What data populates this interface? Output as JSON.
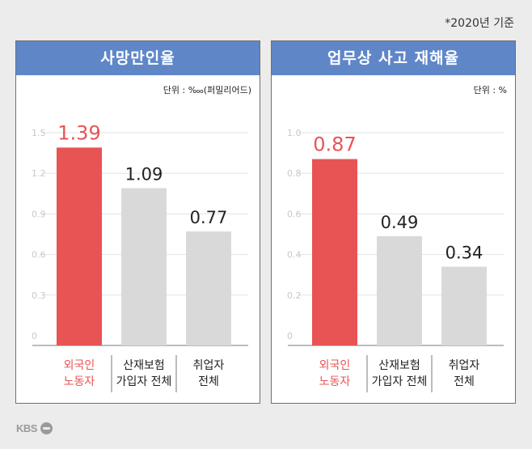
{
  "note": "*2020년 기준",
  "logo": "KBS",
  "colors": {
    "highlight": "#e85454",
    "neutral": "#d9d9d9",
    "header": "#5f87c8",
    "tick": "#c8c8c8",
    "grid": "#e3e3e3"
  },
  "chart_data": [
    {
      "type": "bar",
      "title": "사망만인율",
      "unit": "단위 : ‱(퍼밀리어드)",
      "categories": [
        [
          "외국인",
          "노동자"
        ],
        [
          "산재보험",
          "가입자 전체"
        ],
        [
          "취업자",
          "전체"
        ]
      ],
      "values": [
        1.39,
        1.09,
        0.77
      ],
      "value_labels": [
        "1.39",
        "1.09",
        "0.77"
      ],
      "yticks": [
        "0",
        "0.3",
        "0.6",
        "0.9",
        "1.2",
        "1.5"
      ],
      "ylim": [
        0,
        1.5
      ],
      "highlight_index": 0
    },
    {
      "type": "bar",
      "title": "업무상 사고 재해율",
      "unit": "단위 : %",
      "categories": [
        [
          "외국인",
          "노동자"
        ],
        [
          "산재보험",
          "가입자 전체"
        ],
        [
          "취업자",
          "전체"
        ]
      ],
      "values": [
        0.87,
        0.49,
        0.34
      ],
      "value_labels": [
        "0.87",
        "0.49",
        "0.34"
      ],
      "yticks": [
        "0",
        "0.2",
        "0.4",
        "0.6",
        "0.8",
        "1.0"
      ],
      "ylim": [
        0,
        1.0
      ],
      "highlight_index": 0
    }
  ]
}
